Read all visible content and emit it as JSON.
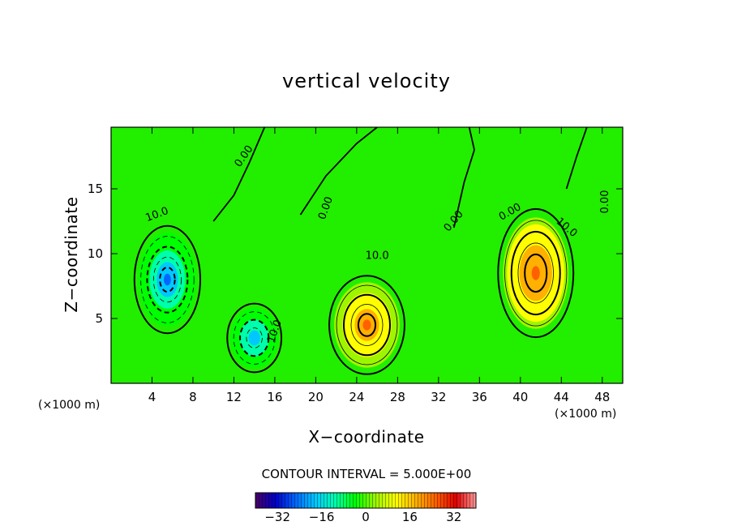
{
  "chart_data": {
    "type": "heatmap",
    "subtype": "filled-contour",
    "title": "vertical velocity",
    "xlabel": "X−coordinate",
    "ylabel": "Z−coordinate",
    "x_unit_left": "(×1000 m)",
    "x_unit_right": "(×1000 m)",
    "xlim": [
      0,
      50
    ],
    "ylim": [
      0,
      19.75
    ],
    "xticks": [
      4,
      8,
      12,
      16,
      20,
      24,
      28,
      32,
      36,
      40,
      44,
      48
    ],
    "yticks": [
      5,
      10,
      15
    ],
    "contour_interval_text": "CONTOUR INTERVAL = 5.000E+00",
    "contour_interval": 5,
    "colorbar": {
      "range": [
        -40,
        40
      ],
      "ticks": [
        -32,
        -16,
        0,
        16,
        32
      ],
      "tick_labels": [
        "−32",
        "−16",
        "0",
        "16",
        "32"
      ],
      "colormap": "rainbow",
      "colors": [
        "#4b0066",
        "#0000c8",
        "#0066ff",
        "#00c8ff",
        "#00ffaa",
        "#00ff00",
        "#9ef500",
        "#ffff00",
        "#ffb000",
        "#ff6000",
        "#e00000",
        "#ff9a9a"
      ]
    },
    "features": [
      {
        "type": "min",
        "x": 5.5,
        "z": 8.0,
        "value": -22,
        "sx": 2.8,
        "sz": 3.6
      },
      {
        "type": "min",
        "x": 14.0,
        "z": 3.5,
        "value": -18,
        "sx": 2.3,
        "sz": 2.3
      },
      {
        "type": "max",
        "x": 25.0,
        "z": 4.5,
        "value": 22,
        "sx": 3.2,
        "sz": 3.3
      },
      {
        "type": "max",
        "x": 41.5,
        "z": 8.5,
        "value": 24,
        "sx": 3.2,
        "sz": 4.3
      }
    ],
    "contour_labels": [
      {
        "text": "0.00",
        "x": 13.0,
        "z": 17.5,
        "angle": -55
      },
      {
        "text": "10.0",
        "x": 4.5,
        "z": 13.0,
        "angle": -20
      },
      {
        "text": "0.00",
        "x": 21.0,
        "z": 13.5,
        "angle": -70
      },
      {
        "text": "10.0",
        "x": 26.0,
        "z": 9.8,
        "angle": 0
      },
      {
        "text": "0.00",
        "x": 33.5,
        "z": 12.5,
        "angle": -50
      },
      {
        "text": "0.00",
        "x": 39.0,
        "z": 13.2,
        "angle": -30
      },
      {
        "text": "10.0",
        "x": 44.5,
        "z": 12.0,
        "angle": 40
      },
      {
        "text": "0.00",
        "x": 48.3,
        "z": 14.0,
        "angle": -90
      },
      {
        "text": "10.0",
        "x": 16.0,
        "z": 4.0,
        "angle": -70
      }
    ]
  }
}
